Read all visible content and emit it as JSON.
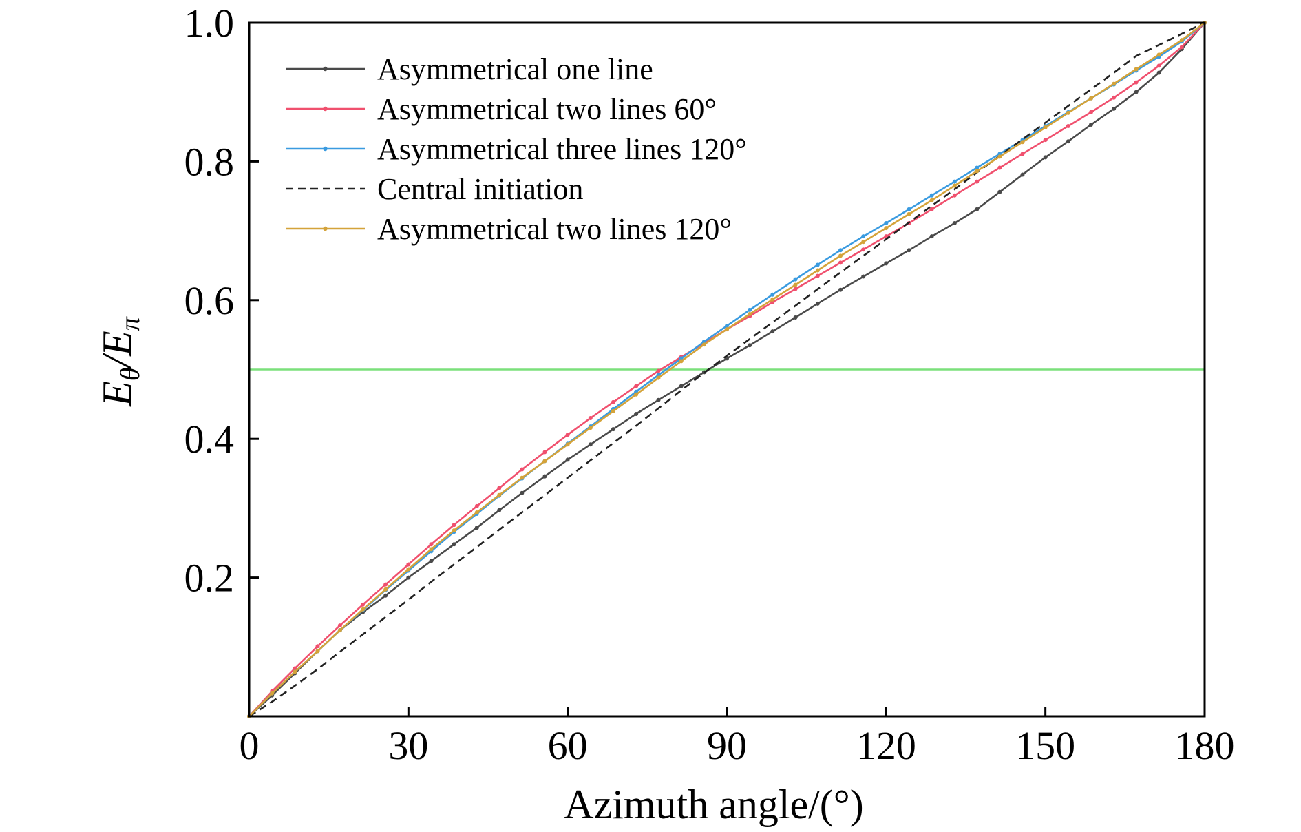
{
  "chart_data": {
    "type": "line",
    "xlabel": "Azimuth angle/(°)",
    "ylabel": {
      "main": "E",
      "sub1": "θ",
      "sep": "/E",
      "sub2": "π"
    },
    "xlim": [
      0,
      180
    ],
    "ylim": [
      0,
      1.0
    ],
    "xticks": [
      "0",
      "30",
      "60",
      "90",
      "120",
      "150",
      "180"
    ],
    "xtick_values": [
      0,
      30,
      60,
      90,
      120,
      150,
      180
    ],
    "yticks": [
      "0.2",
      "0.4",
      "0.6",
      "0.8",
      "1.0"
    ],
    "ytick_values": [
      0.2,
      0.4,
      0.6,
      0.8,
      1.0
    ],
    "grid": false,
    "legend_position": "top-left",
    "reference_line": {
      "y": 0.5,
      "color": "#7be07b"
    },
    "x": [
      0,
      4.3,
      8.6,
      12.9,
      17.1,
      21.4,
      25.7,
      30,
      34.3,
      38.6,
      42.9,
      47.1,
      51.4,
      55.7,
      60,
      64.3,
      68.6,
      72.9,
      77.1,
      81.4,
      85.7,
      90,
      94.3,
      98.6,
      102.9,
      107.1,
      111.4,
      115.7,
      120,
      124.3,
      128.6,
      132.9,
      137.1,
      141.4,
      145.7,
      150,
      154.3,
      158.6,
      162.9,
      167.1,
      171.4,
      175.7,
      180
    ],
    "series": [
      {
        "name": "Asymmetrical one line",
        "color": "#4a4a4a",
        "dash": "solid",
        "values": [
          0,
          0.03,
          0.062,
          0.094,
          0.124,
          0.15,
          0.174,
          0.2,
          0.224,
          0.248,
          0.272,
          0.297,
          0.322,
          0.346,
          0.37,
          0.392,
          0.414,
          0.436,
          0.456,
          0.476,
          0.496,
          0.516,
          0.535,
          0.555,
          0.575,
          0.595,
          0.615,
          0.634,
          0.653,
          0.672,
          0.692,
          0.711,
          0.731,
          0.756,
          0.781,
          0.806,
          0.829,
          0.853,
          0.876,
          0.9,
          0.928,
          0.962,
          1.0
        ]
      },
      {
        "name": "Asymmetrical two lines 60°",
        "color": "#f0506e",
        "dash": "solid",
        "values": [
          0,
          0.036,
          0.069,
          0.101,
          0.131,
          0.161,
          0.19,
          0.219,
          0.248,
          0.276,
          0.303,
          0.329,
          0.356,
          0.381,
          0.406,
          0.43,
          0.453,
          0.476,
          0.498,
          0.518,
          0.538,
          0.558,
          0.577,
          0.597,
          0.616,
          0.635,
          0.654,
          0.673,
          0.692,
          0.711,
          0.731,
          0.751,
          0.771,
          0.791,
          0.811,
          0.831,
          0.851,
          0.871,
          0.892,
          0.914,
          0.938,
          0.965,
          1.0
        ]
      },
      {
        "name": "Asymmetrical three lines 120°",
        "color": "#3a9be0",
        "dash": "solid",
        "values": [
          0,
          0.033,
          0.064,
          0.094,
          0.124,
          0.153,
          0.182,
          0.21,
          0.238,
          0.266,
          0.292,
          0.318,
          0.343,
          0.368,
          0.393,
          0.418,
          0.443,
          0.468,
          0.492,
          0.516,
          0.54,
          0.563,
          0.586,
          0.608,
          0.63,
          0.651,
          0.672,
          0.692,
          0.711,
          0.731,
          0.751,
          0.771,
          0.791,
          0.811,
          0.831,
          0.851,
          0.871,
          0.891,
          0.911,
          0.931,
          0.951,
          0.973,
          1.0
        ]
      },
      {
        "name": "Central initiation",
        "color": "#222222",
        "dash": "dashed",
        "values": [
          0,
          0.021,
          0.044,
          0.068,
          0.093,
          0.118,
          0.143,
          0.168,
          0.194,
          0.219,
          0.244,
          0.269,
          0.294,
          0.319,
          0.344,
          0.369,
          0.394,
          0.419,
          0.444,
          0.47,
          0.495,
          0.52,
          0.544,
          0.568,
          0.592,
          0.616,
          0.64,
          0.664,
          0.688,
          0.712,
          0.736,
          0.76,
          0.784,
          0.808,
          0.832,
          0.856,
          0.88,
          0.904,
          0.928,
          0.952,
          0.968,
          0.984,
          1.0
        ]
      },
      {
        "name": "Asymmetrical two lines 120°",
        "color": "#d4a33a",
        "dash": "solid",
        "values": [
          0,
          0.033,
          0.064,
          0.094,
          0.124,
          0.154,
          0.183,
          0.212,
          0.241,
          0.268,
          0.294,
          0.319,
          0.344,
          0.368,
          0.392,
          0.416,
          0.44,
          0.464,
          0.488,
          0.512,
          0.536,
          0.558,
          0.58,
          0.601,
          0.622,
          0.643,
          0.664,
          0.684,
          0.704,
          0.724,
          0.744,
          0.765,
          0.786,
          0.807,
          0.828,
          0.849,
          0.87,
          0.891,
          0.912,
          0.933,
          0.954,
          0.975,
          1.0
        ]
      }
    ]
  }
}
